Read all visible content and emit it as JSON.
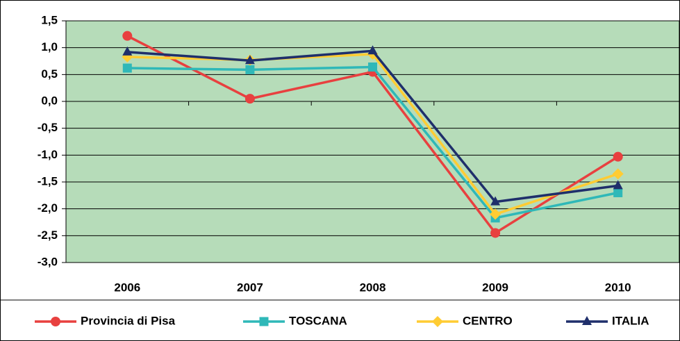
{
  "chart_data": {
    "type": "line",
    "categories": [
      "2006",
      "2007",
      "2008",
      "2009",
      "2010"
    ],
    "series": [
      {
        "name": "Provincia di Pisa",
        "color": "#e8403f",
        "marker": "circle",
        "values": [
          1.22,
          0.05,
          0.55,
          -2.45,
          -1.03
        ]
      },
      {
        "name": "TOSCANA",
        "color": "#2fb8b8",
        "marker": "square",
        "values": [
          0.62,
          0.59,
          0.64,
          -2.17,
          -1.7
        ]
      },
      {
        "name": "CENTRO",
        "color": "#ffcc33",
        "marker": "diamond",
        "values": [
          0.83,
          0.77,
          0.88,
          -2.1,
          -1.35
        ]
      },
      {
        "name": "ITALIA",
        "color": "#1f2f6b",
        "marker": "triangle",
        "values": [
          0.92,
          0.76,
          0.94,
          -1.87,
          -1.57
        ]
      }
    ],
    "ylim": [
      -3,
      1.5
    ],
    "yticks": [
      {
        "value": -3,
        "label": "-3,0"
      },
      {
        "value": -2.5,
        "label": "-2,5"
      },
      {
        "value": -2,
        "label": "-2,0"
      },
      {
        "value": -1.5,
        "label": "-1,5"
      },
      {
        "value": -1,
        "label": "-1,0"
      },
      {
        "value": -0.5,
        "label": "-0,5"
      },
      {
        "value": 0,
        "label": "0,0"
      },
      {
        "value": 0.5,
        "label": "0,5"
      },
      {
        "value": 1,
        "label": "1,0"
      },
      {
        "value": 1.5,
        "label": "1,5"
      }
    ],
    "grid": true,
    "plot_background": "#b6dcb9",
    "legend": "bottom"
  }
}
